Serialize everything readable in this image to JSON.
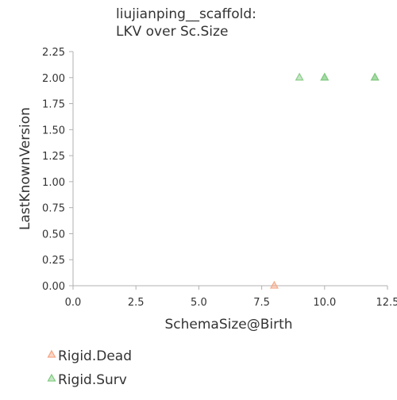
{
  "chart_data": {
    "type": "scatter",
    "title_lines": [
      "liujianping__scaffold:",
      "LKV over Sc.Size"
    ],
    "xlabel": "SchemaSize@Birth",
    "ylabel": "LastKnownVersion",
    "xlim": [
      0,
      12.5
    ],
    "ylim": [
      0,
      2.25
    ],
    "x_ticks": [
      0.0,
      2.5,
      5.0,
      7.5,
      10.0,
      12.5
    ],
    "x_tick_labels": [
      "0.0",
      "2.5",
      "5.0",
      "7.5",
      "10.0",
      "12.5"
    ],
    "y_ticks": [
      0.0,
      0.25,
      0.5,
      0.75,
      1.0,
      1.25,
      1.5,
      1.75,
      2.0,
      2.25
    ],
    "y_tick_labels": [
      "0.00",
      "0.25",
      "0.50",
      "0.75",
      "1.00",
      "1.25",
      "1.50",
      "1.75",
      "2.00",
      "2.25"
    ],
    "grid": false,
    "legend_position": "bottom-left",
    "marker": "triangle",
    "series": [
      {
        "name": "Rigid.Dead",
        "color": "#f4a582",
        "points": [
          {
            "x": 8,
            "y": 0
          }
        ]
      },
      {
        "name": "Rigid.Surv",
        "color": "#7fc97f",
        "points": [
          {
            "x": 9,
            "y": 2
          },
          {
            "x": 10,
            "y": 2
          },
          {
            "x": 10,
            "y": 2
          },
          {
            "x": 12,
            "y": 2
          },
          {
            "x": 12,
            "y": 2
          }
        ]
      }
    ]
  }
}
